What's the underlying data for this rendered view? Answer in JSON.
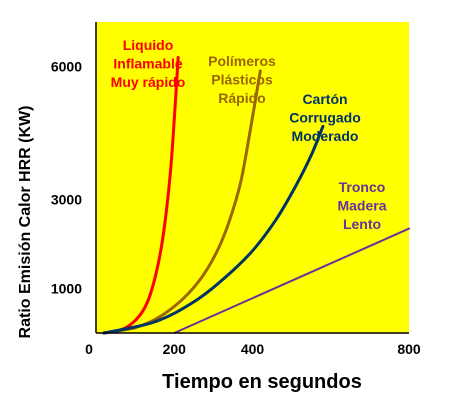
{
  "chart_data": {
    "type": "line",
    "xlabel": "Tiempo en segundos",
    "ylabel": "Ratio Emisión Calor HRR (KW)",
    "xlim": [
      0,
      800
    ],
    "ylim": [
      0,
      7000
    ],
    "x_ticks": [
      {
        "value": 0,
        "label": "0"
      },
      {
        "value": 200,
        "label": "200"
      },
      {
        "value": 400,
        "label": "400"
      },
      {
        "value": 800,
        "label": "800"
      }
    ],
    "y_ticks": [
      {
        "value": 1000,
        "label": "1000"
      },
      {
        "value": 3000,
        "label": "3000"
      },
      {
        "value": 6000,
        "label": "6000"
      }
    ],
    "background": "#ffff00",
    "grid": false,
    "series": [
      {
        "name": "Liquido Inflamable Muy rápido",
        "label_lines": [
          "Liquido",
          "Inflamable",
          "Muy rápido"
        ],
        "color": "#ff0000",
        "x": [
          20,
          60,
          90,
          120,
          140,
          160,
          175,
          190,
          200,
          210
        ],
        "y": [
          0,
          60,
          200,
          500,
          900,
          1600,
          2400,
          3600,
          4800,
          6200
        ]
      },
      {
        "name": "Polímeros Plásticos Rápido",
        "label_lines": [
          "Polímeros",
          "Plásticos",
          "Rápido"
        ],
        "color": "#996600",
        "x": [
          20,
          100,
          160,
          220,
          270,
          310,
          340,
          370,
          395,
          420
        ],
        "y": [
          0,
          120,
          350,
          750,
          1250,
          1850,
          2500,
          3400,
          4600,
          5900
        ]
      },
      {
        "name": "Cartón Corrugado Moderado",
        "label_lines": [
          "Cartón",
          "Corrugado",
          "Moderado"
        ],
        "color": "#003366",
        "x": [
          20,
          150,
          250,
          330,
          400,
          460,
          510,
          550,
          580
        ],
        "y": [
          0,
          250,
          700,
          1250,
          1850,
          2550,
          3300,
          4000,
          4650
        ]
      },
      {
        "name": "Tronco Madera Lento",
        "label_lines": [
          "Tronco",
          "Madera",
          "Lento"
        ],
        "color": "#663399",
        "x": [
          200,
          800
        ],
        "y": [
          0,
          2350
        ]
      }
    ]
  }
}
